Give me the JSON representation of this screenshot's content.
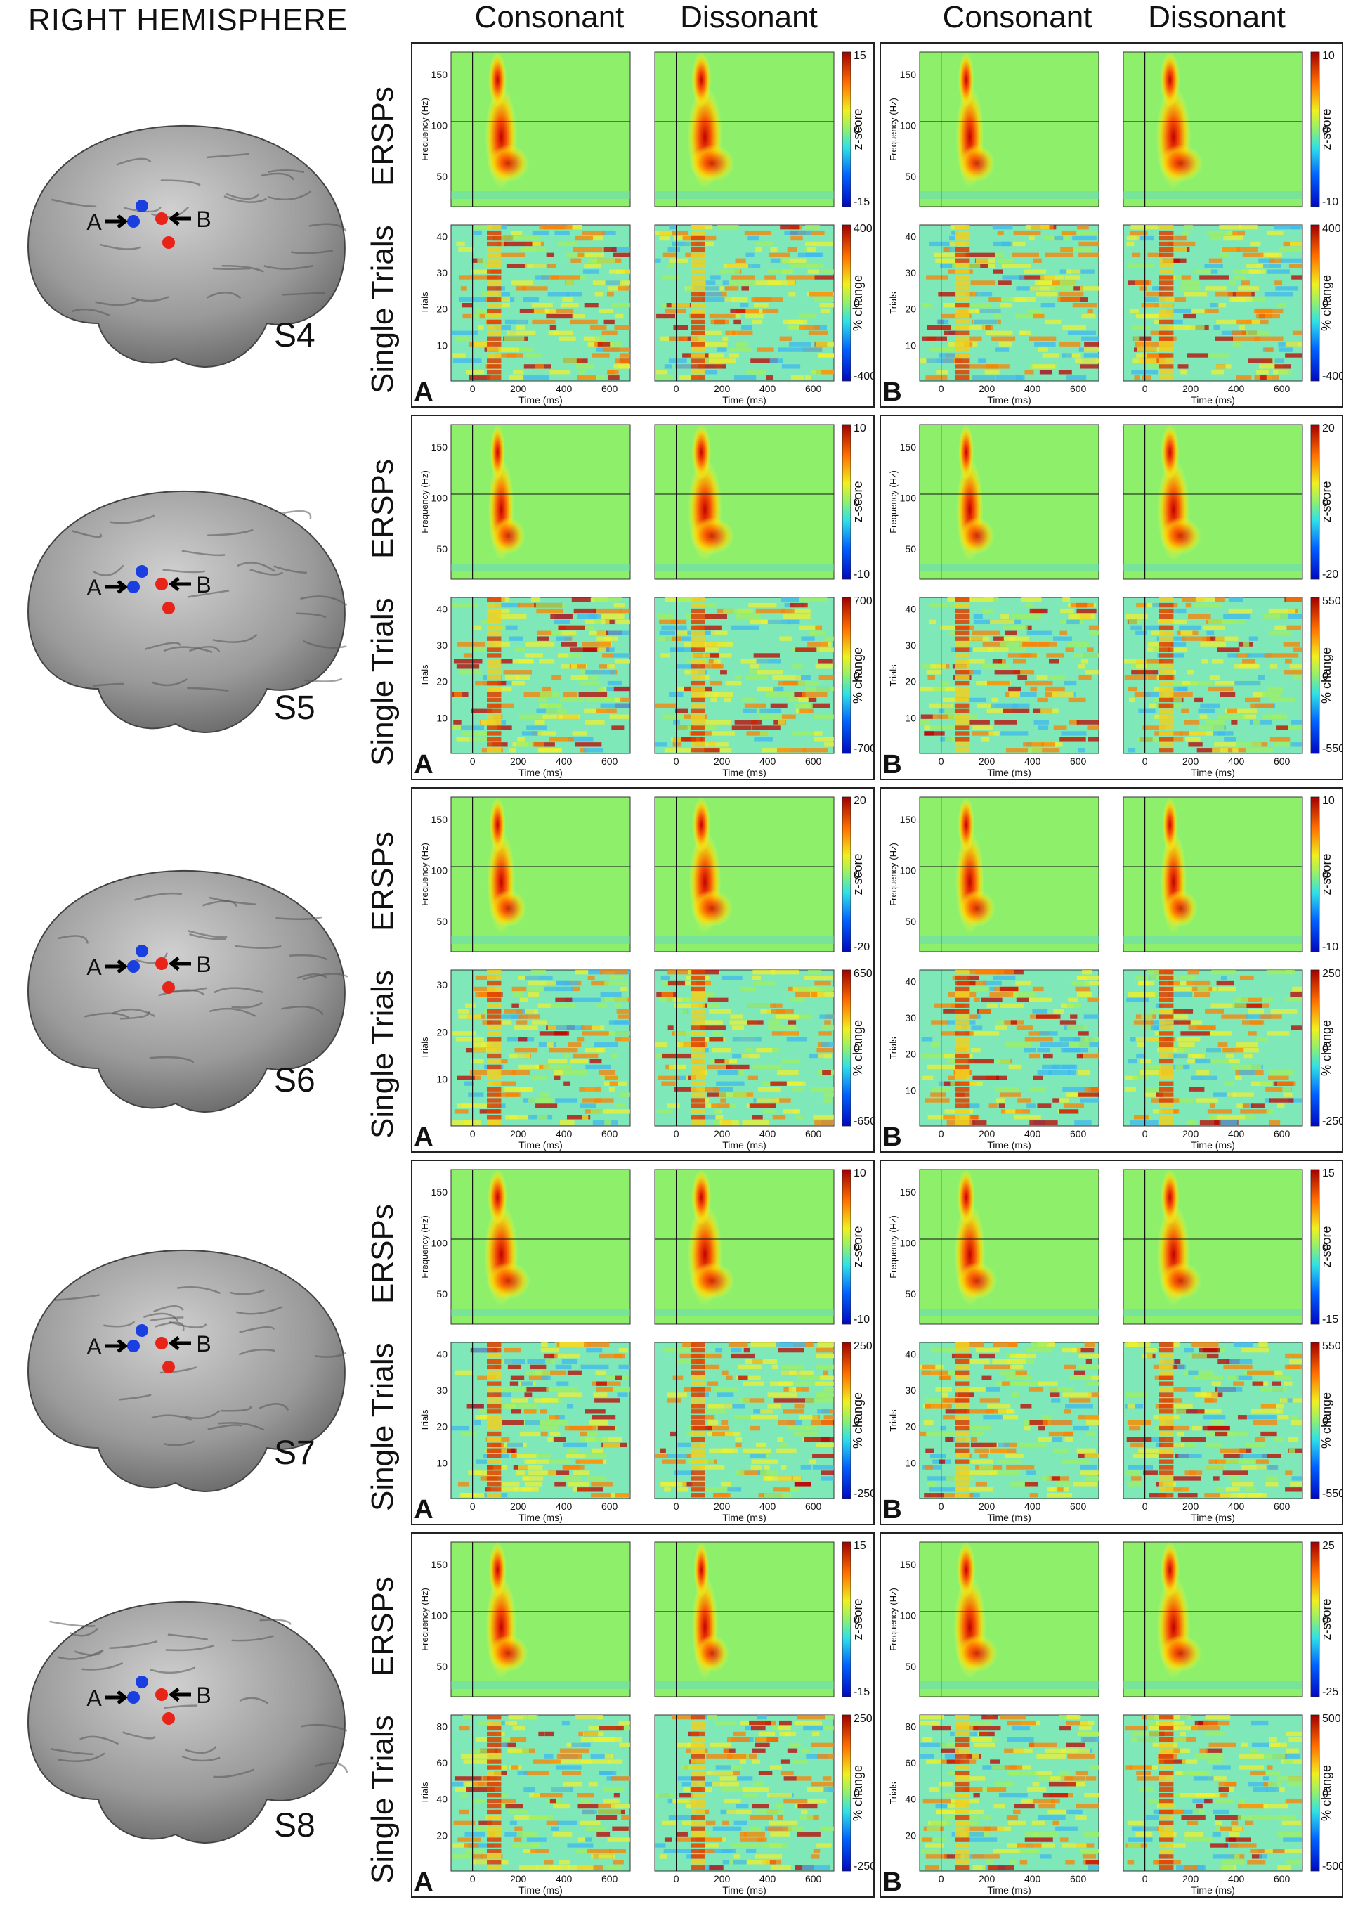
{
  "figure": {
    "hemisphere_title": "RIGHT HEMISPHERE",
    "column_headers": [
      "Consonant",
      "Dissonant",
      "Consonant",
      "Dissonant"
    ],
    "row_labels": {
      "ersp": "ERSPs",
      "trials": "Single Trials"
    },
    "ersp_axis": {
      "ylabel": "Frequency (Hz)",
      "yticks": [
        "50",
        "100",
        "150"
      ],
      "cbar_label": "z-score"
    },
    "trials_axis": {
      "ylabel": "Trials",
      "cbar_label": "% change"
    },
    "time_axis": {
      "xlabel": "Time (ms)",
      "xticks": [
        "0",
        "200",
        "400",
        "600"
      ]
    },
    "colors": {
      "background_green": "#8ef06a",
      "hot": "#b40000",
      "cold": "#0010c8"
    },
    "subjects": [
      {
        "name": "S4",
        "contacts": [
          {
            "label": "A"
          },
          {
            "label": "B"
          }
        ],
        "panels": [
          {
            "letter": "A",
            "ersp": {
              "max": "15",
              "zero": "0",
              "min": "-15"
            },
            "trials": {
              "max": "400",
              "zero": "0",
              "min": "-400",
              "yticks": [
                "10",
                "20",
                "30",
                "40"
              ]
            }
          },
          {
            "letter": "B",
            "ersp": {
              "max": "10",
              "zero": "0",
              "min": "-10"
            },
            "trials": {
              "max": "400",
              "zero": "0",
              "min": "-400",
              "yticks": [
                "10",
                "20",
                "30",
                "40"
              ]
            }
          }
        ]
      },
      {
        "name": "S5",
        "contacts": [
          {
            "label": "A"
          },
          {
            "label": "B"
          }
        ],
        "panels": [
          {
            "letter": "A",
            "ersp": {
              "max": "10",
              "zero": "0",
              "min": "-10"
            },
            "trials": {
              "max": "700",
              "zero": "0",
              "min": "-700",
              "yticks": [
                "10",
                "20",
                "30",
                "40"
              ]
            }
          },
          {
            "letter": "B",
            "ersp": {
              "max": "20",
              "zero": "0",
              "min": "-20"
            },
            "trials": {
              "max": "550",
              "zero": "0",
              "min": "-550",
              "yticks": [
                "10",
                "20",
                "30",
                "40"
              ]
            }
          }
        ]
      },
      {
        "name": "S6",
        "contacts": [
          {
            "label": "A"
          },
          {
            "label": "B"
          }
        ],
        "panels": [
          {
            "letter": "A",
            "ersp": {
              "max": "20",
              "zero": "0",
              "min": "-20"
            },
            "trials": {
              "max": "650",
              "zero": "0",
              "min": "-650",
              "yticks": [
                "10",
                "20",
                "30"
              ]
            }
          },
          {
            "letter": "B",
            "ersp": {
              "max": "10",
              "zero": "0",
              "min": "-10"
            },
            "trials": {
              "max": "250",
              "zero": "0",
              "min": "-250",
              "yticks": [
                "10",
                "20",
                "30",
                "40"
              ]
            }
          }
        ]
      },
      {
        "name": "S7",
        "contacts": [
          {
            "label": "A"
          },
          {
            "label": "B"
          }
        ],
        "panels": [
          {
            "letter": "A",
            "ersp": {
              "max": "10",
              "zero": "0",
              "min": "-10"
            },
            "trials": {
              "max": "250",
              "zero": "0",
              "min": "-250",
              "yticks": [
                "10",
                "20",
                "30",
                "40"
              ]
            }
          },
          {
            "letter": "B",
            "ersp": {
              "max": "15",
              "zero": "0",
              "min": "-15"
            },
            "trials": {
              "max": "550",
              "zero": "0",
              "min": "-550",
              "yticks": [
                "10",
                "20",
                "30",
                "40"
              ]
            }
          }
        ]
      },
      {
        "name": "S8",
        "contacts": [
          {
            "label": "A"
          },
          {
            "label": "B"
          }
        ],
        "panels": [
          {
            "letter": "A",
            "ersp": {
              "max": "15",
              "zero": "0",
              "min": "-15"
            },
            "trials": {
              "max": "250",
              "zero": "0",
              "min": "-250",
              "yticks": [
                "20",
                "40",
                "60",
                "80"
              ]
            }
          },
          {
            "letter": "B",
            "ersp": {
              "max": "25",
              "zero": "0",
              "min": "-25"
            },
            "trials": {
              "max": "500",
              "zero": "0",
              "min": "-500",
              "yticks": [
                "20",
                "40",
                "60",
                "80"
              ]
            }
          }
        ]
      }
    ]
  }
}
